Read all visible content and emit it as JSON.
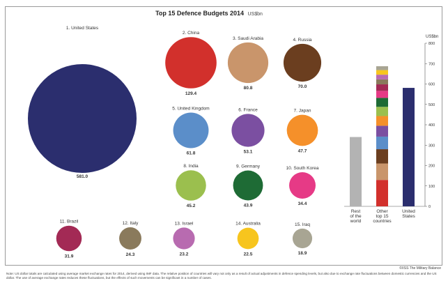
{
  "chart_data": {
    "type": "bubble",
    "title": "Top 15 Defence Budgets 2014",
    "unit_label": "US$bn",
    "countries": [
      {
        "rank_label": "1. United States",
        "value": 581.0,
        "value_label": "581.0",
        "color": "#2b2e6e"
      },
      {
        "rank_label": "2. China",
        "value": 129.4,
        "value_label": "129.4",
        "color": "#d2302c"
      },
      {
        "rank_label": "3. Saudi Arabia",
        "value": 80.8,
        "value_label": "80.8",
        "color": "#c9956b"
      },
      {
        "rank_label": "4. Russia",
        "value": 70.0,
        "value_label": "70.0",
        "color": "#6b3e1f"
      },
      {
        "rank_label": "5. United Kingdom",
        "value": 61.8,
        "value_label": "61.8",
        "color": "#5b8ec9"
      },
      {
        "rank_label": "6. France",
        "value": 53.1,
        "value_label": "53.1",
        "color": "#7b4fa1"
      },
      {
        "rank_label": "7. Japan",
        "value": 47.7,
        "value_label": "47.7",
        "color": "#f5902a"
      },
      {
        "rank_label": "8. India",
        "value": 45.2,
        "value_label": "45.2",
        "color": "#9bbf4e"
      },
      {
        "rank_label": "9. Germany",
        "value": 43.9,
        "value_label": "43.9",
        "color": "#1e6b35"
      },
      {
        "rank_label": "10. South Korea",
        "value": 34.4,
        "value_label": "34.4",
        "color": "#e63a86"
      },
      {
        "rank_label": "11. Brazil",
        "value": 31.9,
        "value_label": "31.9",
        "color": "#a32a55"
      },
      {
        "rank_label": "12. Italy",
        "value": 24.3,
        "value_label": "24.3",
        "color": "#8a7a5c"
      },
      {
        "rank_label": "13. Israel",
        "value": 23.2,
        "value_label": "23.2",
        "color": "#b86bb0"
      },
      {
        "rank_label": "14. Australia",
        "value": 22.5,
        "value_label": "22.5",
        "color": "#f7c51e"
      },
      {
        "rank_label": "15. Iraq",
        "value": 18.9,
        "value_label": "18.9",
        "color": "#a8a593"
      }
    ],
    "stacked_bars": {
      "y_axis_label": "US$bn",
      "ylim": [
        0,
        800
      ],
      "ticks": [
        0,
        100,
        200,
        300,
        400,
        500,
        600,
        700,
        800
      ],
      "bars": [
        {
          "label_lines": [
            "Rest",
            "of the",
            "world"
          ],
          "segments": [
            {
              "value": 340,
              "color": "#b3b3b3"
            }
          ]
        },
        {
          "label_lines": [
            "Other",
            "top 15",
            "countries"
          ],
          "segments": [
            {
              "value": 129.4,
              "color": "#d2302c"
            },
            {
              "value": 80.8,
              "color": "#c9956b"
            },
            {
              "value": 70.0,
              "color": "#6b3e1f"
            },
            {
              "value": 61.8,
              "color": "#5b8ec9"
            },
            {
              "value": 53.1,
              "color": "#7b4fa1"
            },
            {
              "value": 47.7,
              "color": "#f5902a"
            },
            {
              "value": 45.2,
              "color": "#9bbf4e"
            },
            {
              "value": 43.9,
              "color": "#1e6b35"
            },
            {
              "value": 34.4,
              "color": "#e63a86"
            },
            {
              "value": 31.9,
              "color": "#a32a55"
            },
            {
              "value": 24.3,
              "color": "#8a7a5c"
            },
            {
              "value": 23.2,
              "color": "#b86bb0"
            },
            {
              "value": 22.5,
              "color": "#f7c51e"
            },
            {
              "value": 18.9,
              "color": "#a8a593"
            }
          ]
        },
        {
          "label_lines": [
            "United",
            "States"
          ],
          "segments": [
            {
              "value": 581.0,
              "color": "#2b2e6e"
            }
          ]
        }
      ]
    }
  },
  "source": "©IISS The Military Balance",
  "footnote": "Note: US dollar totals are calculated using average market exchange rates for 2014, derived using IMF data. The relative position of countries will vary not only as a result of actual adjustments in defence spending levels, but also due to exchange rate fluctuations between domestic currencies and the US dollar. The use of average exchange rates reduces these fluctuations, but the effects of such movements can be significant in a number of cases."
}
